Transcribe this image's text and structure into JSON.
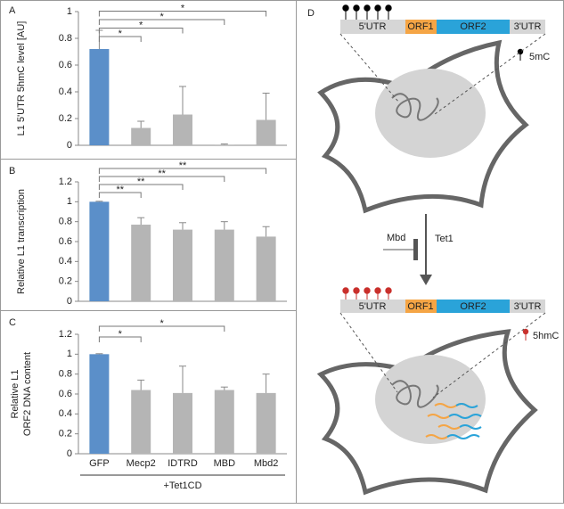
{
  "chart_data": [
    {
      "type": "bar",
      "panel_label": "A",
      "ylabel": [
        "L1 5'UTR 5hmC level [AU]"
      ],
      "values": [
        0.72,
        0.13,
        0.23,
        0.005,
        0.19
      ],
      "errors": [
        0.14,
        0.05,
        0.21,
        0.005,
        0.2
      ],
      "colors": [
        "#5b8fc9",
        "#b5b5b5",
        "#b5b5b5",
        "#b5b5b5",
        "#b5b5b5"
      ],
      "ylim": [
        0,
        1
      ],
      "yticks": [
        0,
        0.2,
        0.4,
        0.6,
        0.8,
        1
      ],
      "significance": [
        {
          "pair": [
            0,
            1
          ],
          "label": "*"
        },
        {
          "pair": [
            0,
            2
          ],
          "label": "*"
        },
        {
          "pair": [
            0,
            3
          ],
          "label": "*"
        },
        {
          "pair": [
            0,
            4
          ],
          "label": "*"
        }
      ]
    },
    {
      "type": "bar",
      "panel_label": "B",
      "ylabel": [
        "Relative L1 transcription"
      ],
      "values": [
        1.0,
        0.77,
        0.72,
        0.72,
        0.65
      ],
      "errors": [
        0.005,
        0.07,
        0.07,
        0.08,
        0.1
      ],
      "colors": [
        "#5b8fc9",
        "#b5b5b5",
        "#b5b5b5",
        "#b5b5b5",
        "#b5b5b5"
      ],
      "ylim": [
        0,
        1.2
      ],
      "yticks": [
        0,
        0.2,
        0.4,
        0.6,
        0.8,
        1,
        1.2
      ],
      "significance": [
        {
          "pair": [
            0,
            1
          ],
          "label": "**"
        },
        {
          "pair": [
            0,
            2
          ],
          "label": "**"
        },
        {
          "pair": [
            0,
            3
          ],
          "label": "**"
        },
        {
          "pair": [
            0,
            4
          ],
          "label": "**"
        }
      ]
    },
    {
      "type": "bar",
      "panel_label": "C",
      "ylabel": [
        "Relative L1",
        "ORF2 DNA content"
      ],
      "categories": [
        "GFP",
        "Mecp2",
        "IDTRD",
        "MBD",
        "Mbd2"
      ],
      "group_label": "+Tet1CD",
      "values": [
        1.0,
        0.64,
        0.61,
        0.64,
        0.61
      ],
      "errors": [
        0.005,
        0.1,
        0.27,
        0.03,
        0.19
      ],
      "colors": [
        "#5b8fc9",
        "#b5b5b5",
        "#b5b5b5",
        "#b5b5b5",
        "#b5b5b5"
      ],
      "ylim": [
        0,
        1.2
      ],
      "yticks": [
        0,
        0.2,
        0.4,
        0.6,
        0.8,
        1,
        1.2
      ],
      "significance": [
        {
          "pair": [
            0,
            1
          ],
          "label": "*"
        },
        {
          "pair": [
            0,
            3
          ],
          "label": "*"
        }
      ]
    }
  ],
  "diagram": {
    "panel_label": "D",
    "top_gene": [
      "5'UTR",
      "ORF1",
      "ORF2",
      "3'UTR"
    ],
    "top_mark": "5mC",
    "inhibitor": "Mbd",
    "enzyme": "Tet1",
    "bottom_gene": [
      "5'UTR",
      "ORF1",
      "ORF2",
      "3'UTR"
    ],
    "bottom_mark": "5hmC"
  }
}
